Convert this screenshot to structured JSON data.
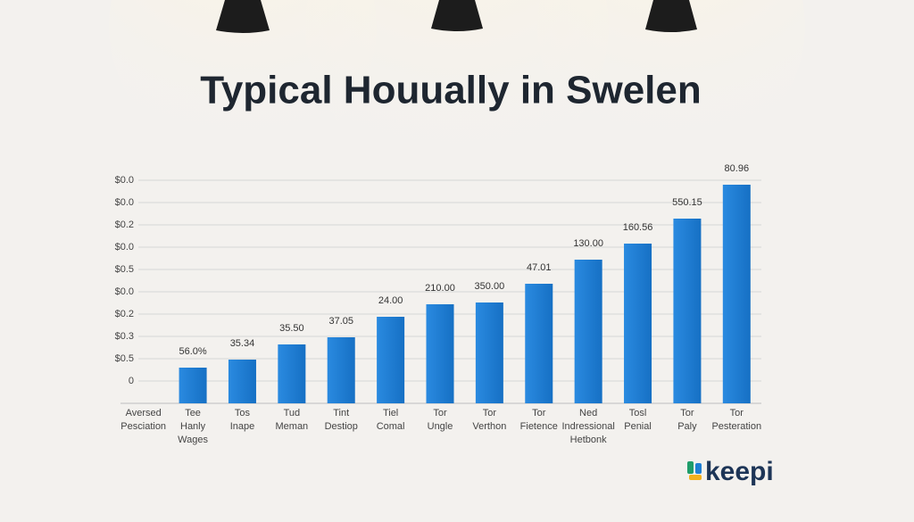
{
  "chart_data": {
    "type": "bar",
    "title": "Typical Houually in Swelen",
    "categories": [
      [
        "Aversed",
        "Pesciation"
      ],
      [
        "Tee",
        "Hanly",
        "Wages"
      ],
      [
        "Tos",
        "Inape"
      ],
      [
        "Tud",
        "Meman"
      ],
      [
        "Tint",
        "Destiop"
      ],
      [
        "Tiel",
        "Comal"
      ],
      [
        "Tor",
        "Ungle"
      ],
      [
        "Tor",
        "Verthon"
      ],
      [
        "Tor",
        "Fietence"
      ],
      [
        "Ned",
        "Indressional",
        "Hetbonk"
      ],
      [
        "Tosl",
        "Penial"
      ],
      [
        "Tor",
        "Paly"
      ],
      [
        "Tor",
        "Pesteration"
      ]
    ],
    "values": [
      null,
      1.6,
      1.96,
      2.64,
      2.96,
      3.88,
      4.44,
      4.52,
      5.36,
      6.44,
      7.16,
      8.28,
      9.8
    ],
    "annotations": [
      null,
      "56.0%",
      "35.34",
      "35.50",
      "37.05",
      "24.00",
      "210.00",
      "350.00",
      "47.01",
      "130.00",
      "160.56",
      "550.15",
      "80.96"
    ],
    "color": "#1f7fd4",
    "ylim": [
      0,
      10
    ],
    "yticks": [
      {
        "value": 1,
        "label": "0"
      },
      {
        "value": 2,
        "label": "$0.5"
      },
      {
        "value": 3,
        "label": "$0.3"
      },
      {
        "value": 4,
        "label": "$0.2"
      },
      {
        "value": 5,
        "label": "$0.0"
      },
      {
        "value": 6,
        "label": "$0.5"
      },
      {
        "value": 7,
        "label": "$0.0"
      },
      {
        "value": 8,
        "label": "$0.2"
      },
      {
        "value": 9,
        "label": "$0.0"
      },
      {
        "value": 10,
        "label": "$0.0"
      }
    ],
    "grid": true
  },
  "logo": "keepi"
}
